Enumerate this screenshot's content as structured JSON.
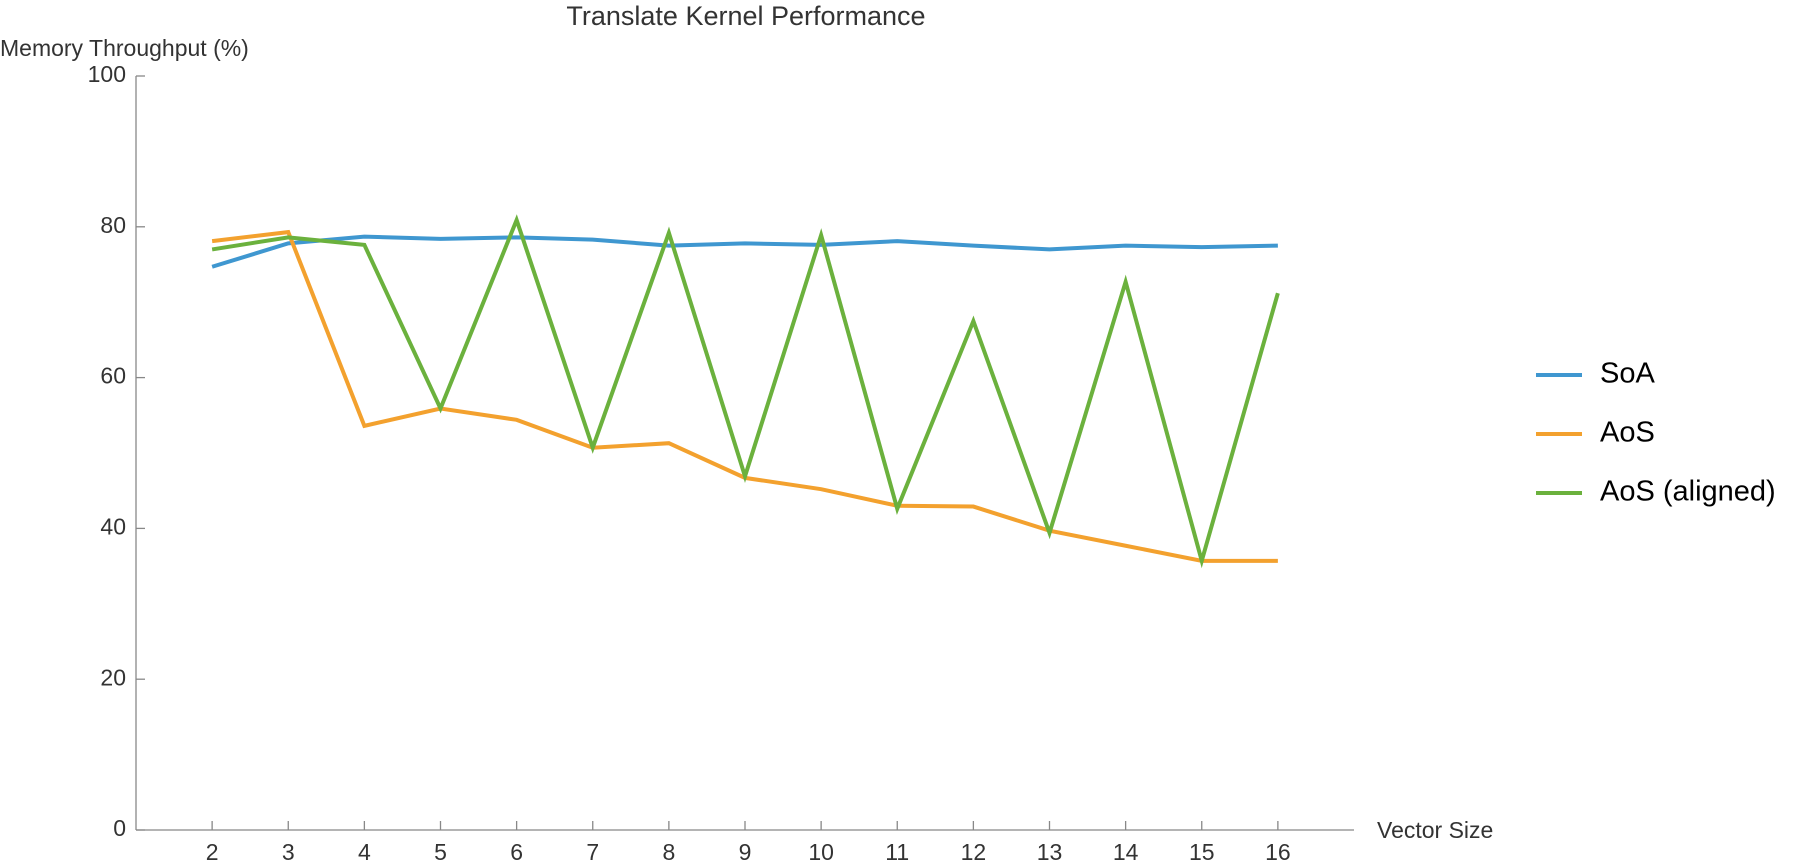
{
  "chart_data": {
    "type": "line",
    "title": "Translate Kernel Performance",
    "x_label": "Vector Size",
    "y_label": "Memory Throughput (%)",
    "x": [
      2,
      3,
      4,
      5,
      6,
      7,
      8,
      9,
      10,
      11,
      12,
      13,
      14,
      15,
      16
    ],
    "series": [
      {
        "name": "SoA",
        "color": "#3f97d0",
        "values": [
          74.7,
          77.8,
          78.7,
          78.4,
          78.6,
          78.3,
          77.5,
          77.8,
          77.6,
          78.1,
          77.5,
          77.0,
          77.5,
          77.3,
          77.5
        ]
      },
      {
        "name": "AoS",
        "color": "#f3a12e",
        "values": [
          78.1,
          79.3,
          53.6,
          55.9,
          54.4,
          50.7,
          51.3,
          46.7,
          45.2,
          43.0,
          42.9,
          39.7,
          37.7,
          35.7,
          35.7
        ]
      },
      {
        "name": "AoS (aligned)",
        "color": "#6bb13d",
        "values": [
          77.0,
          78.6,
          77.6,
          55.9,
          80.9,
          50.7,
          79.2,
          46.9,
          78.9,
          42.6,
          67.5,
          39.4,
          72.7,
          35.7,
          71.2
        ]
      }
    ],
    "xlim": [
      1,
      17
    ],
    "xticks": [
      2,
      3,
      4,
      5,
      6,
      7,
      8,
      9,
      10,
      11,
      12,
      13,
      14,
      15,
      16
    ],
    "ylim": [
      0,
      100
    ],
    "yticks": [
      0,
      20,
      40,
      60,
      80,
      100
    ],
    "grid": false,
    "legend": "right"
  }
}
